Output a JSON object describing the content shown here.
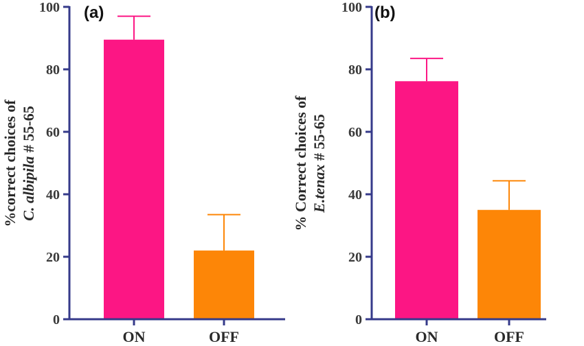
{
  "chart_data": [
    {
      "type": "bar",
      "panel_label": "(a)",
      "categories": [
        "ON",
        "OFF"
      ],
      "values": [
        89.5,
        22
      ],
      "error_upper": [
        97,
        33.5
      ],
      "colors": [
        "#fc1684",
        "#fd8607"
      ],
      "ylabel_line1": "%correct choices of",
      "ylabel_line2_italic": "C. albipila",
      "ylabel_line2_rest": " # 55-65",
      "ylim": [
        0,
        100
      ],
      "yticks": [
        "0",
        "20",
        "40",
        "60",
        "80",
        "100"
      ],
      "axis_color": "#353a8a"
    },
    {
      "type": "bar",
      "panel_label": "(b)",
      "categories": [
        "ON",
        "OFF"
      ],
      "values": [
        76.2,
        35
      ],
      "error_upper": [
        83.5,
        44.3
      ],
      "colors": [
        "#fc1684",
        "#fd8607"
      ],
      "ylabel_line1": "% Correct choices of",
      "ylabel_line2_italic": "E.tenax",
      "ylabel_line2_rest": " # 55-65",
      "ylim": [
        0,
        100
      ],
      "yticks": [
        "0",
        "20",
        "40",
        "60",
        "80",
        "100"
      ],
      "axis_color": "#353a8a"
    }
  ]
}
